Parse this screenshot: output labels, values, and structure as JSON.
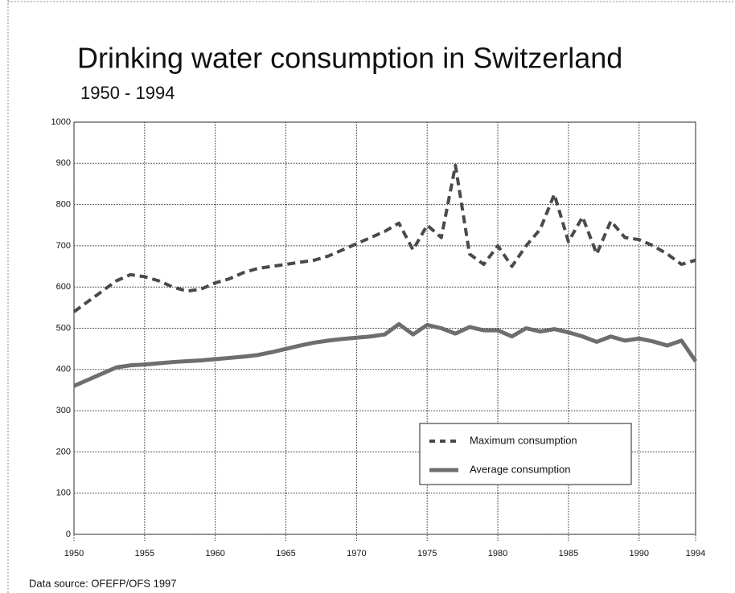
{
  "chart_data": {
    "type": "line",
    "title": "Drinking water consumption in Switzerland",
    "subtitle": "1950 - 1994",
    "source": "Data source: OFEFP/OFS 1997",
    "x": [
      1950,
      1951,
      1952,
      1953,
      1954,
      1955,
      1956,
      1957,
      1958,
      1959,
      1960,
      1961,
      1962,
      1963,
      1964,
      1965,
      1966,
      1967,
      1968,
      1969,
      1970,
      1971,
      1972,
      1973,
      1974,
      1975,
      1976,
      1977,
      1978,
      1979,
      1980,
      1981,
      1982,
      1983,
      1984,
      1985,
      1986,
      1987,
      1988,
      1989,
      1990,
      1991,
      1992,
      1993,
      1994
    ],
    "series": [
      {
        "name": "Maximum consumption",
        "color": "#4a4a4a",
        "dash": true,
        "values": [
          540,
          565,
          590,
          615,
          630,
          625,
          615,
          600,
          590,
          595,
          610,
          620,
          635,
          645,
          650,
          655,
          660,
          665,
          675,
          690,
          705,
          720,
          735,
          755,
          690,
          750,
          720,
          895,
          680,
          655,
          700,
          650,
          700,
          740,
          825,
          710,
          770,
          680,
          760,
          720,
          715,
          700,
          680,
          655,
          665
        ]
      },
      {
        "name": "Average consumption",
        "color": "#6e6e6e",
        "dash": false,
        "values": [
          360,
          375,
          390,
          405,
          410,
          412,
          415,
          418,
          420,
          422,
          425,
          428,
          431,
          435,
          442,
          450,
          458,
          465,
          470,
          474,
          477,
          480,
          485,
          510,
          485,
          508,
          500,
          487,
          503,
          495,
          495,
          480,
          500,
          492,
          498,
          490,
          480,
          467,
          480,
          470,
          475,
          468,
          458,
          470,
          420
        ]
      }
    ],
    "xlim": [
      1950,
      1994
    ],
    "xticks": [
      1950,
      1955,
      1960,
      1965,
      1970,
      1975,
      1980,
      1985,
      1990,
      1994
    ],
    "ylim": [
      0,
      1000
    ],
    "yticks": [
      0,
      100,
      200,
      300,
      400,
      500,
      600,
      700,
      800,
      900,
      1000
    ],
    "grid": true,
    "legend": "lower right"
  }
}
